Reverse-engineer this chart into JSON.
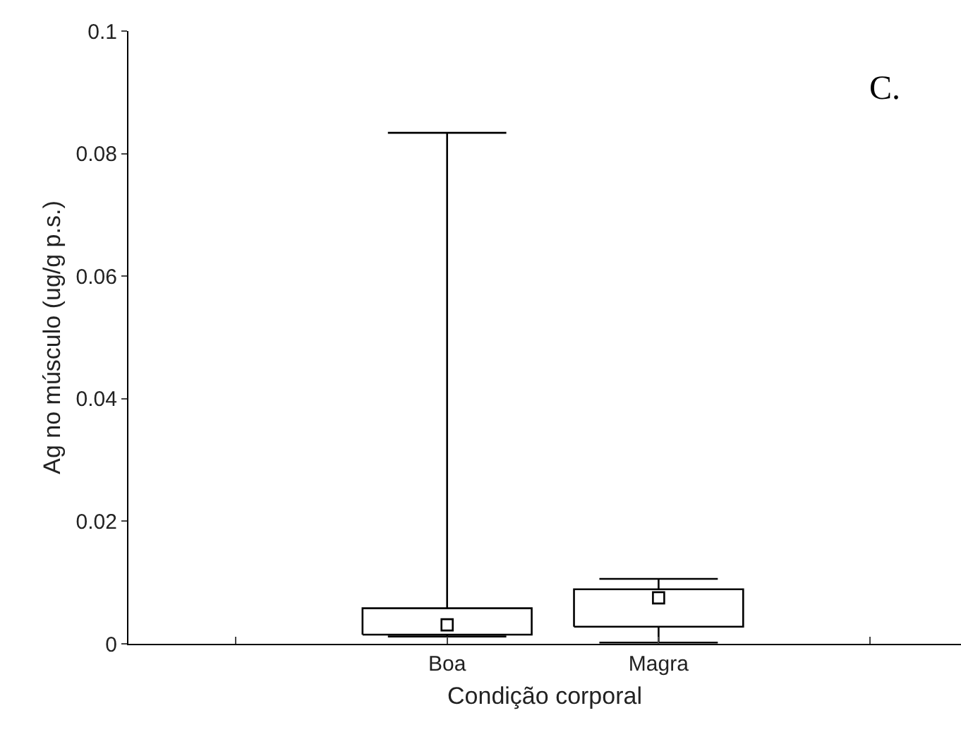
{
  "chart_data": {
    "type": "box",
    "xlabel": "Condição corporal",
    "ylabel": "Ag no músculo (ug/g p.s.)",
    "annotations": [
      "C."
    ],
    "categories": [
      "Boa",
      "Magra"
    ],
    "boxes": [
      {
        "low": 0.0012,
        "q1": 0.0015,
        "median": 0.0031,
        "q3": 0.0058,
        "high": 0.0834
      },
      {
        "low": 0.0002,
        "q1": 0.0028,
        "median": 0.0075,
        "q3": 0.0089,
        "high": 0.0106
      }
    ],
    "ylim": [
      0,
      0.1
    ],
    "yticks": [
      0,
      0.02,
      0.04,
      0.06,
      0.08,
      0.1
    ],
    "marker": "square"
  }
}
